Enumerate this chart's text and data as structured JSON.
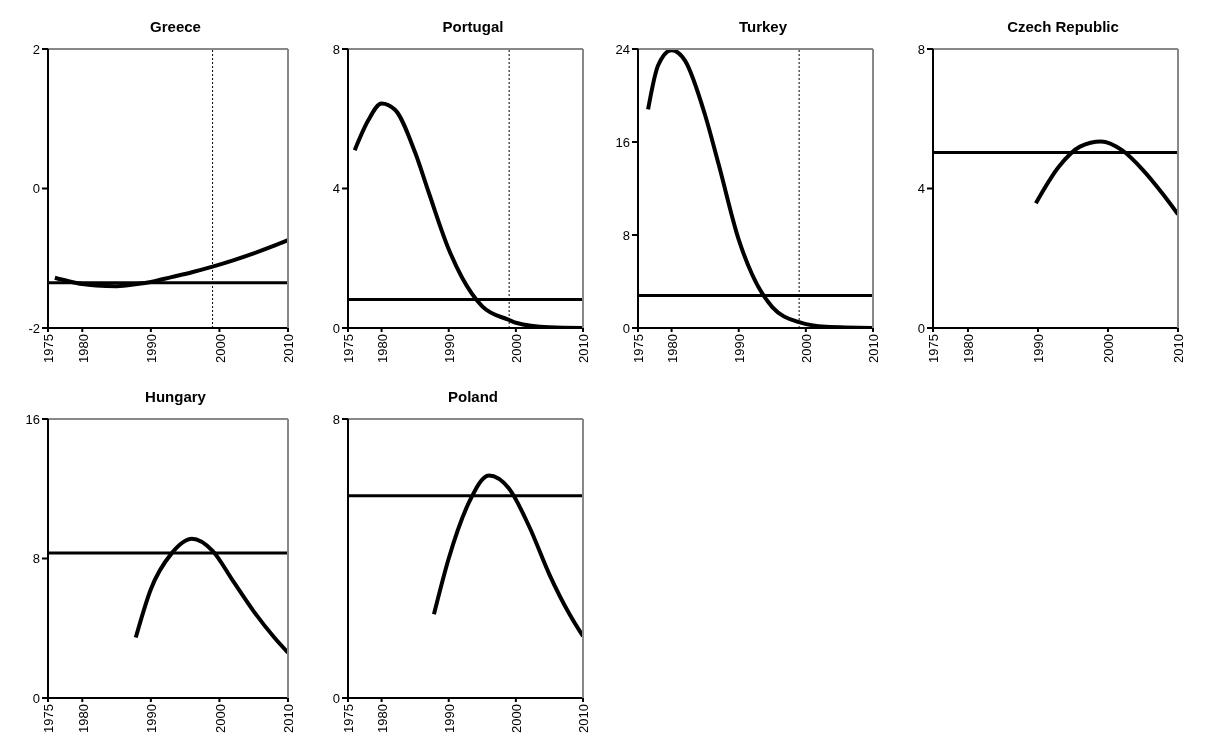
{
  "chart_data": [
    {
      "type": "line",
      "title": "Greece",
      "x": [
        1976,
        1978,
        1980,
        1982,
        1985,
        1988,
        1990,
        1993,
        1996,
        1999,
        2002,
        2005,
        2008,
        2010
      ],
      "values": [
        -1.28,
        -1.33,
        -1.37,
        -1.39,
        -1.4,
        -1.37,
        -1.34,
        -1.27,
        -1.2,
        -1.12,
        -1.03,
        -0.93,
        -0.82,
        -0.74
      ],
      "color": "#000000",
      "xlim": [
        1975,
        2010
      ],
      "xticks": [
        1975,
        1980,
        1990,
        2000,
        2010
      ],
      "ylim": [
        -2,
        2
      ],
      "yticks": [
        -2,
        0,
        2
      ],
      "grid": false,
      "legend": false,
      "ref_lines": [
        {
          "axis": "y",
          "value": -1.35,
          "color": "#000000",
          "line_style": "solid"
        },
        {
          "axis": "x",
          "value": 1999,
          "color": "#000000",
          "line_style": "dotted"
        }
      ]
    },
    {
      "type": "line",
      "title": "Portugal",
      "x": [
        1976,
        1978,
        1980,
        1982,
        1985,
        1987,
        1990,
        1992,
        1995,
        1999,
        2000,
        2005,
        2010
      ],
      "values": [
        5.1,
        5.95,
        6.44,
        6.26,
        5.03,
        3.9,
        2.26,
        1.44,
        0.62,
        0.23,
        0.15,
        0.02,
        0
      ],
      "color": "#000000",
      "xlim": [
        1975,
        2010
      ],
      "xticks": [
        1975,
        1980,
        1990,
        2000,
        2010
      ],
      "ylim": [
        0,
        8
      ],
      "yticks": [
        0,
        4,
        8
      ],
      "grid": false,
      "legend": false,
      "ref_lines": [
        {
          "axis": "y",
          "value": 0.82,
          "color": "#000000",
          "line_style": "solid"
        },
        {
          "axis": "x",
          "value": 1999,
          "color": "#000000",
          "line_style": "dotted"
        }
      ]
    },
    {
      "type": "line",
      "title": "Turkey",
      "x": [
        1976.5,
        1978,
        1980,
        1982,
        1985,
        1987,
        1990,
        1992,
        1995,
        1999,
        2003,
        2010
      ],
      "values": [
        18.8,
        22.6,
        23.9,
        23,
        18.3,
        14.1,
        7.6,
        4.6,
        1.8,
        0.5,
        0.1,
        0
      ],
      "color": "#000000",
      "xlim": [
        1975,
        2010
      ],
      "xticks": [
        1975,
        1980,
        1990,
        2000,
        2010
      ],
      "ylim": [
        0,
        24
      ],
      "yticks": [
        0,
        8,
        16,
        24
      ],
      "grid": false,
      "legend": false,
      "ref_lines": [
        {
          "axis": "y",
          "value": 2.8,
          "color": "#000000",
          "line_style": "solid"
        },
        {
          "axis": "x",
          "value": 1999,
          "color": "#000000",
          "line_style": "dotted"
        }
      ]
    },
    {
      "type": "line",
      "title": "Czech Republic",
      "x": [
        1989.7,
        1993,
        1996,
        1999,
        2002,
        2005,
        2008,
        2010
      ],
      "values": [
        3.58,
        4.63,
        5.2,
        5.35,
        5.1,
        4.53,
        3.8,
        3.26
      ],
      "color": "#000000",
      "xlim": [
        1975,
        2010
      ],
      "xticks": [
        1975,
        1980,
        1990,
        2000,
        2010
      ],
      "ylim": [
        0,
        8
      ],
      "yticks": [
        0,
        4,
        8
      ],
      "grid": false,
      "legend": false,
      "ref_lines": [
        {
          "axis": "y",
          "value": 5.03,
          "color": "#000000",
          "line_style": "solid"
        }
      ]
    },
    {
      "type": "line",
      "title": "Hungary",
      "x": [
        1987.8,
        1990,
        1993,
        1996,
        1999,
        2002,
        2005,
        2008,
        2010
      ],
      "values": [
        3.47,
        6.24,
        8.28,
        9.13,
        8.44,
        6.7,
        4.97,
        3.47,
        2.6
      ],
      "color": "#000000",
      "xlim": [
        1975,
        2010
      ],
      "xticks": [
        1975,
        1980,
        1990,
        2000,
        2010
      ],
      "ylim": [
        0,
        16
      ],
      "yticks": [
        0,
        8,
        16
      ],
      "grid": false,
      "legend": false,
      "ref_lines": [
        {
          "axis": "y",
          "value": 8.32,
          "color": "#000000",
          "line_style": "solid"
        }
      ]
    },
    {
      "type": "line",
      "title": "Poland",
      "x": [
        1987.8,
        1990,
        1993,
        1996,
        1999,
        2002,
        2005,
        2008,
        2010
      ],
      "values": [
        2.4,
        4.0,
        5.6,
        6.38,
        6.0,
        4.91,
        3.54,
        2.4,
        1.77
      ],
      "color": "#000000",
      "xlim": [
        1975,
        2010
      ],
      "xticks": [
        1975,
        1980,
        1990,
        2000,
        2010
      ],
      "ylim": [
        0,
        8
      ],
      "yticks": [
        0,
        8
      ],
      "grid": false,
      "legend": false,
      "ref_lines": [
        {
          "axis": "y",
          "value": 5.8,
          "color": "#000000",
          "line_style": "solid"
        }
      ]
    }
  ]
}
